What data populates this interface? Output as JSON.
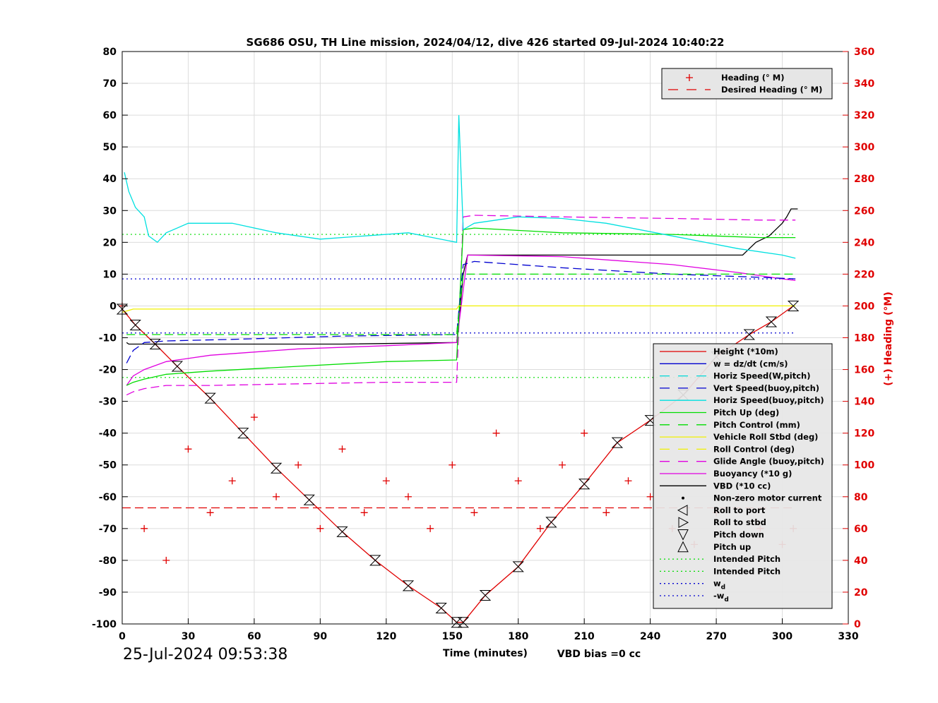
{
  "chart_data": {
    "type": "line",
    "title": "SG686 OSU, TH Line mission, 2024/04/12, dive 426 started 09-Jul-2024 10:40:22",
    "xlabel": "Time (minutes)",
    "ylabel_right": "(+) Heading (°M)",
    "xlim": [
      0,
      330
    ],
    "ylim": [
      -100,
      80
    ],
    "ylim_right": [
      0,
      360
    ],
    "x_ticks": [
      "0",
      "30",
      "60",
      "90",
      "120",
      "150",
      "180",
      "210",
      "240",
      "270",
      "300",
      "330"
    ],
    "y_ticks": [
      "80",
      "70",
      "60",
      "50",
      "40",
      "30",
      "20",
      "10",
      "0",
      "-10",
      "-20",
      "-30",
      "-40",
      "-50",
      "-60",
      "-70",
      "-80",
      "-90",
      "-100"
    ],
    "y2_ticks": [
      "360",
      "340",
      "320",
      "300",
      "280",
      "260",
      "240",
      "220",
      "200",
      "180",
      "160",
      "140",
      "120",
      "100",
      "80",
      "60",
      "40",
      "20",
      "0"
    ],
    "grid": true,
    "timestamp": "25-Jul-2024 09:53:38",
    "vbd_bias": "VBD bias =0 cc",
    "legend_top": [
      {
        "label": "Heading (° M)",
        "color": "#e00000",
        "style": "plus"
      },
      {
        "label": "Desired Heading (° M)",
        "color": "#e00000",
        "style": "dash"
      }
    ],
    "legend_main": [
      {
        "label": "Height (*10m)",
        "color": "#e00000",
        "style": "solid"
      },
      {
        "label": "w = dz/dt (cm/s)",
        "color": "#0000d0",
        "style": "solid"
      },
      {
        "label": "Horiz Speed(W,pitch)",
        "color": "#00d8d8",
        "style": "dash"
      },
      {
        "label": "Vert Speed(buoy,pitch)",
        "color": "#0000d0",
        "style": "dash"
      },
      {
        "label": "Horiz Speed(buoy,pitch)",
        "color": "#00e0e0",
        "style": "solid"
      },
      {
        "label": "Pitch Up (deg)",
        "color": "#00dd00",
        "style": "solid"
      },
      {
        "label": "Pitch Control (mm)",
        "color": "#00dd00",
        "style": "dash"
      },
      {
        "label": "Vehicle Roll Stbd (deg)",
        "color": "#f0f000",
        "style": "solid"
      },
      {
        "label": "Roll Control (deg)",
        "color": "#f0f000",
        "style": "dash"
      },
      {
        "label": "Glide Angle (buoy,pitch)",
        "color": "#e000e0",
        "style": "dash"
      },
      {
        "label": "Buoyancy (*10 g)",
        "color": "#e000e0",
        "style": "solid"
      },
      {
        "label": "VBD (*10 cc)",
        "color": "#000000",
        "style": "solid"
      },
      {
        "label": "Non-zero motor current",
        "color": "#000000",
        "style": "dot"
      },
      {
        "label": "Roll to port",
        "color": "#000000",
        "style": "tri-left"
      },
      {
        "label": "Roll to stbd",
        "color": "#000000",
        "style": "tri-right"
      },
      {
        "label": "Pitch down",
        "color": "#000000",
        "style": "tri-down"
      },
      {
        "label": "Pitch up",
        "color": "#000000",
        "style": "tri-up"
      },
      {
        "label": "Intended Pitch",
        "color": "#00dd00",
        "style": "dotted"
      },
      {
        "label": "Intended Pitch",
        "color": "#00dd00",
        "style": "dotted"
      },
      {
        "label": "w",
        "sub": "d",
        "color": "#0000d0",
        "style": "dotted"
      },
      {
        "label": "-w",
        "sub": "d",
        "color": "#0000d0",
        "style": "dotted"
      }
    ],
    "series": [
      {
        "name": "Height (*10m)",
        "axis": "left",
        "color": "#e00000",
        "x": [
          0,
          6,
          15,
          25,
          40,
          55,
          70,
          85,
          100,
          115,
          130,
          145,
          152,
          155,
          165,
          180,
          195,
          210,
          225,
          240,
          255,
          270,
          285,
          295,
          305
        ],
        "y": [
          -1,
          -6,
          -12,
          -19,
          -29,
          -40,
          -51,
          -61,
          -71,
          -80,
          -88,
          -95,
          -99.5,
          -99.5,
          -91,
          -82,
          -68,
          -56,
          -43,
          -36,
          -28,
          -16,
          -9,
          -5,
          0
        ]
      },
      {
        "name": "VBD (*10 cc)",
        "axis": "left",
        "color": "#000000",
        "x": [
          2,
          3,
          4,
          8,
          60,
          100,
          152,
          153,
          155,
          157,
          160,
          200,
          250,
          282,
          285,
          288,
          291,
          294,
          297,
          300,
          302,
          304,
          307
        ],
        "y": [
          -11.5,
          -12,
          -12,
          -12,
          -12,
          -12,
          -11.5,
          -5,
          10,
          16,
          16,
          16,
          16,
          16,
          18,
          20,
          21,
          22,
          24,
          26,
          28,
          30.5,
          30.5
        ]
      },
      {
        "name": "Buoyancy (*10 g)",
        "axis": "left",
        "color": "#e000e0",
        "x": [
          2,
          5,
          10,
          20,
          40,
          80,
          120,
          152,
          155,
          157,
          200,
          250,
          280,
          300,
          306
        ],
        "y": [
          -25,
          -22,
          -20,
          -17.5,
          -15.5,
          -13.5,
          -12.5,
          -11.5,
          5,
          16,
          15.5,
          13,
          10.5,
          8.5,
          8
        ]
      },
      {
        "name": "Glide Angle (buoy,pitch)",
        "axis": "left",
        "color": "#e000e0",
        "x": [
          2,
          5,
          10,
          20,
          40,
          80,
          120,
          152,
          155,
          160,
          200,
          250,
          290,
          306
        ],
        "y": [
          -28,
          -27,
          -26,
          -25,
          -25,
          -24.5,
          -24,
          -24,
          28,
          28.5,
          28,
          27.5,
          27,
          27
        ]
      },
      {
        "name": "Pitch Up (deg)",
        "axis": "left",
        "color": "#00dd00",
        "x": [
          2,
          5,
          10,
          20,
          40,
          80,
          120,
          152,
          155,
          160,
          200,
          250,
          290,
          306
        ],
        "y": [
          -25,
          -24,
          -23,
          -21.5,
          -20.5,
          -19,
          -17.5,
          -17,
          24,
          24.5,
          23,
          22.5,
          21.5,
          21.5
        ]
      },
      {
        "name": "Vert Speed(buoy,pitch)",
        "axis": "left",
        "color": "#0000d0",
        "x": [
          2,
          5,
          10,
          20,
          50,
          100,
          152,
          155,
          160,
          200,
          250,
          290,
          306
        ],
        "y": [
          -18,
          -14,
          -11.5,
          -11,
          -10.5,
          -9.5,
          -9,
          13,
          14,
          12,
          10,
          9,
          8.5
        ]
      },
      {
        "name": "Horiz Speed(buoy,pitch)",
        "axis": "left",
        "color": "#00e0e0",
        "x": [
          1,
          3,
          6,
          10,
          12,
          16,
          20,
          30,
          50,
          70,
          90,
          110,
          130,
          152,
          153,
          155,
          160,
          180,
          200,
          220,
          250,
          280,
          300,
          306
        ],
        "y": [
          42,
          36,
          31,
          28,
          22,
          20,
          23,
          26,
          26,
          23,
          21,
          22,
          23,
          20,
          60,
          24,
          26,
          28,
          27.5,
          26,
          22,
          18,
          16,
          15
        ]
      },
      {
        "name": "Pitch Control (mm)",
        "axis": "left",
        "color": "#00dd00",
        "x": [
          2,
          10,
          40,
          100,
          152,
          155,
          200,
          250,
          306
        ],
        "y": [
          -9,
          -9,
          -9,
          -9,
          -9,
          10,
          10,
          10,
          10
        ]
      },
      {
        "name": "Vehicle Roll Stbd (deg)",
        "axis": "left",
        "color": "#f0f000",
        "x": [
          0,
          5,
          10,
          30,
          60,
          90,
          120,
          152,
          153,
          156,
          160,
          200,
          250,
          280,
          300,
          306
        ],
        "y": [
          -2,
          -1,
          -1,
          -1,
          -1,
          -1,
          -1,
          -1,
          0,
          0,
          0,
          0,
          0,
          0,
          0,
          0
        ]
      },
      {
        "name": "Heading (° M)",
        "axis": "right",
        "color": "#e00000",
        "x": [
          0,
          10,
          20,
          30,
          40,
          50,
          60,
          70,
          80,
          90,
          100,
          110,
          120,
          130,
          140,
          150,
          160,
          170,
          180,
          190,
          200,
          210,
          220,
          230,
          240,
          250,
          260,
          270,
          280,
          290,
          300,
          305
        ],
        "y": [
          200,
          60,
          40,
          110,
          70,
          90,
          130,
          80,
          100,
          60,
          110,
          70,
          90,
          80,
          60,
          100,
          70,
          120,
          90,
          60,
          100,
          120,
          70,
          90,
          80,
          60,
          50,
          70,
          80,
          60,
          50,
          60
        ]
      },
      {
        "name": "Desired Heading (° M)",
        "axis": "right",
        "color": "#e00000",
        "x": [
          0,
          306
        ],
        "y": [
          73,
          73
        ]
      }
    ],
    "reference_lines": [
      {
        "name": "Intended Pitch",
        "value": 22.5,
        "color": "#00dd00"
      },
      {
        "name": "Intended Pitch",
        "value": -22.5,
        "color": "#00dd00"
      },
      {
        "name": "w_d",
        "value": 8.5,
        "color": "#0000d0"
      },
      {
        "name": "-w_d",
        "value": -8.5,
        "color": "#0000d0"
      }
    ]
  }
}
